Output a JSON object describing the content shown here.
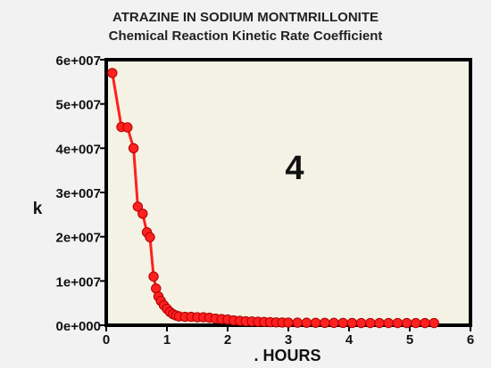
{
  "chart_data": {
    "type": "line",
    "title": "ATRAZINE IN SODIUM MONTMRILLONITE",
    "subtitle": "Chemical Reaction Kinetic Rate Coefficient",
    "xlabel": ". HOURS",
    "ylabel": "k",
    "annotation": "4",
    "xlim": [
      0,
      6
    ],
    "ylim": [
      0,
      60000000
    ],
    "x_ticks": [
      0,
      1,
      2,
      3,
      4,
      5,
      6
    ],
    "x_tick_labels": [
      "0",
      "1",
      "2",
      "3",
      "4",
      "5",
      "6"
    ],
    "y_ticks": [
      0,
      10000000,
      20000000,
      30000000,
      40000000,
      50000000,
      60000000
    ],
    "y_tick_labels": [
      "0e+000",
      "1e+007",
      "2e+007",
      "3e+007",
      "4e+007",
      "5e+007",
      "6e+007"
    ],
    "grid": false,
    "colors": {
      "plot_background": "#f3f2e4",
      "page_background": "#f2f2f2",
      "series": "#ff2020",
      "axis": "#000000"
    },
    "series": [
      {
        "x": [
          0.1,
          0.25,
          0.35,
          0.45,
          0.52,
          0.6,
          0.67,
          0.72,
          0.78,
          0.82,
          0.86,
          0.9,
          0.95,
          1.0,
          1.05,
          1.1,
          1.15,
          1.2,
          1.3,
          1.4,
          1.5,
          1.6,
          1.7,
          1.8,
          1.9,
          2.0,
          2.1,
          2.2,
          2.3,
          2.4,
          2.5,
          2.6,
          2.7,
          2.8,
          2.9,
          3.0,
          3.15,
          3.3,
          3.45,
          3.6,
          3.75,
          3.9,
          4.05,
          4.2,
          4.35,
          4.5,
          4.65,
          4.8,
          4.95,
          5.1,
          5.25,
          5.4
        ],
        "y": [
          57000000,
          44800000,
          44700000,
          40000000,
          26800000,
          25200000,
          21000000,
          19900000,
          11000000,
          8300000,
          6500000,
          5500000,
          4500000,
          3700000,
          3000000,
          2500000,
          2200000,
          2000000,
          1900000,
          1900000,
          1800000,
          1800000,
          1700000,
          1500000,
          1400000,
          1300000,
          1100000,
          1000000,
          900000,
          850000,
          800000,
          750000,
          700000,
          650000,
          620000,
          600000,
          580000,
          560000,
          550000,
          540000,
          530000,
          520000,
          510000,
          500000,
          500000,
          500000,
          500000,
          500000,
          500000,
          500000,
          500000,
          500000
        ]
      }
    ]
  }
}
